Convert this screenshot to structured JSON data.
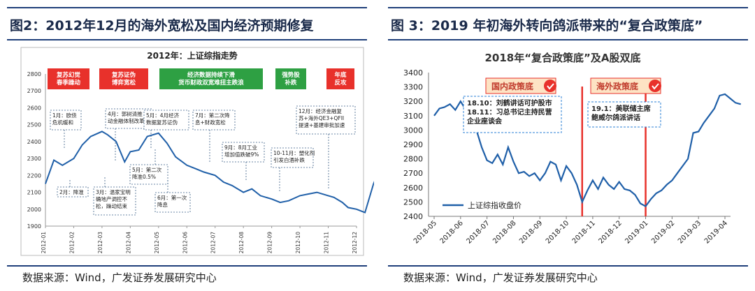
{
  "left": {
    "figure_title": "图2：2012年12月的海外宽松及国内经济预期修复",
    "source": "数据来源：Wind，广发证券发展研究中心",
    "colors": {
      "line": "#1f5fa8",
      "red": "#e8312b",
      "green": "#2ea043",
      "dash": "#3a5f86"
    },
    "phases": [
      {
        "text": "复苏幻觉\n春季躁动",
        "color": "#e8312b"
      },
      {
        "text": "复苏证伪\n博弈宽松",
        "color": "#e8312b"
      },
      {
        "text": "经济数据持续下滑\n货币财政双宽难扭主跌浪",
        "color": "#2ea043"
      },
      {
        "text": "强势股\n补跌",
        "color": "#2ea043"
      },
      {
        "text": "年底\n反攻",
        "color": "#e8312b"
      }
    ],
    "annotations": [
      {
        "text": "1月：欧债\n危机缓和"
      },
      {
        "text": "2月：降准"
      },
      {
        "text": "3月：温家宝明\n确地产调控不\n松，躁动结束"
      },
      {
        "text": "4月：郭树清推\n动金融体制改革"
      },
      {
        "text": "5月：第二次\n降准0.5%"
      },
      {
        "text": "5月：4月经济\n数据复苏证伪"
      },
      {
        "text": "6月：第一次\n降息"
      },
      {
        "text": "7月：第二次降\n息+财政宽松"
      },
      {
        "text": "9月：8月工业\n增加值跌破9%"
      },
      {
        "text": "10-11月：塑化剂\n引发白酒补跌"
      },
      {
        "text": "12月：经济金融复\n苏+海外QE3+QFII\n提速+基建审批加速"
      }
    ],
    "chart_data": {
      "type": "line",
      "title": "2012年：上证综指走势",
      "ylim": [
        1900,
        2800
      ],
      "yticks": [
        1900,
        2000,
        2100,
        2200,
        2300,
        2400,
        2500,
        2600,
        2700,
        2800
      ],
      "xticks": [
        "2012-01",
        "2012-02",
        "2012-03",
        "2012-04",
        "2012-05",
        "2012-06",
        "2012-07",
        "2012-08",
        "2012-09",
        "2012-10",
        "2012-11",
        "2012-12"
      ],
      "series": [
        {
          "name": "上证综指",
          "x": [
            0,
            0.3,
            0.6,
            1.0,
            1.3,
            1.6,
            2.0,
            2.2,
            2.5,
            2.8,
            3.0,
            3.3,
            3.6,
            4.0,
            4.3,
            4.6,
            5.0,
            5.3,
            5.6,
            6.0,
            6.3,
            6.6,
            7.0,
            7.3,
            7.6,
            8.0,
            8.3,
            8.6,
            9.0,
            9.3,
            9.6,
            10.0,
            10.2,
            10.5,
            10.7,
            11.0,
            11.3,
            11.6,
            11.9
          ],
          "values": [
            2150,
            2290,
            2260,
            2300,
            2380,
            2430,
            2460,
            2440,
            2400,
            2280,
            2340,
            2350,
            2430,
            2450,
            2390,
            2310,
            2260,
            2240,
            2220,
            2200,
            2160,
            2140,
            2100,
            2120,
            2080,
            2060,
            2040,
            2050,
            2080,
            2090,
            2100,
            2080,
            2070,
            2040,
            2010,
            2000,
            1980,
            2150,
            2270
          ]
        }
      ]
    }
  },
  "right": {
    "figure_title": "图 3：2019 年初海外转向鸽派带来的“复合政策底”",
    "source": "数据来源：Wind，广发证券发展研究中心",
    "colors": {
      "line": "#1f5fa8",
      "red": "#e8312b",
      "callout_bg": "#fde3c4",
      "dash": "#2a7fd4"
    },
    "callouts": [
      {
        "label": "国内政策底",
        "lines": [
          "18.10：刘鹤讲话可护股市",
          "18.11：习总书记主持民营",
          "企业座谈会"
        ]
      },
      {
        "label": "海外政策底",
        "lines": [
          "19.1：美联储主席",
          "鲍威尔鸽派讲话"
        ]
      }
    ],
    "legend": "上证综指收盘价",
    "chart_data": {
      "type": "line",
      "title": "2018年“复合政策底”及A股双底",
      "ylim": [
        2400,
        3400
      ],
      "yticks": [
        2400,
        2500,
        2600,
        2700,
        2800,
        2900,
        3000,
        3100,
        3200,
        3300,
        3400
      ],
      "xticks": [
        "2018-05",
        "2018-06",
        "2018-07",
        "2018-08",
        "2018-09",
        "2018-10",
        "2018-11",
        "2018-12",
        "2019-01",
        "2019-02",
        "2019-03",
        "2019-04"
      ],
      "vlines_month_index": [
        5.6,
        8.0
      ],
      "series": [
        {
          "name": "上证综指收盘价",
          "x": [
            0,
            0.2,
            0.4,
            0.6,
            0.8,
            1.0,
            1.2,
            1.4,
            1.6,
            1.8,
            2.0,
            2.2,
            2.4,
            2.6,
            2.8,
            3.0,
            3.2,
            3.4,
            3.6,
            3.8,
            4.0,
            4.2,
            4.4,
            4.6,
            4.8,
            5.0,
            5.2,
            5.4,
            5.6,
            5.8,
            6.0,
            6.2,
            6.4,
            6.6,
            6.8,
            7.0,
            7.2,
            7.4,
            7.6,
            7.8,
            8.0,
            8.2,
            8.4,
            8.6,
            8.8,
            9.0,
            9.2,
            9.4,
            9.6,
            9.8,
            10.0,
            10.2,
            10.4,
            10.6,
            10.8,
            11.0,
            11.2,
            11.4,
            11.6
          ],
          "values": [
            3100,
            3150,
            3160,
            3180,
            3140,
            3200,
            3140,
            3070,
            3000,
            2880,
            2790,
            2770,
            2830,
            2760,
            2880,
            2780,
            2700,
            2710,
            2680,
            2700,
            2650,
            2700,
            2780,
            2760,
            2650,
            2750,
            2700,
            2620,
            2500,
            2580,
            2650,
            2590,
            2670,
            2620,
            2590,
            2640,
            2590,
            2580,
            2550,
            2490,
            2470,
            2520,
            2560,
            2580,
            2620,
            2650,
            2700,
            2750,
            2800,
            2980,
            2990,
            3050,
            3100,
            3150,
            3240,
            3250,
            3220,
            3190,
            3180
          ]
        }
      ]
    }
  }
}
